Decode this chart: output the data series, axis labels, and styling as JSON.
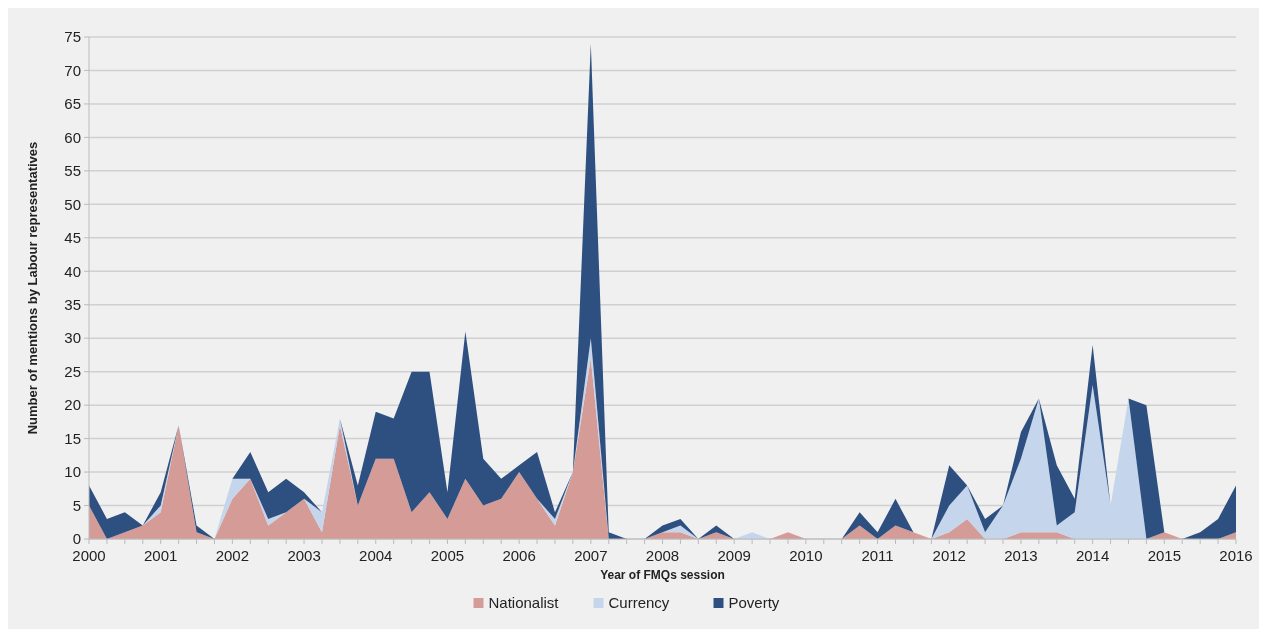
{
  "chart_data": {
    "type": "area",
    "stacked": true,
    "xlabel": "Year of FMQs session",
    "ylabel": "Number of mentions by Labour representatives",
    "x": [
      2000,
      2000.25,
      2000.5,
      2000.75,
      2001,
      2001.25,
      2001.5,
      2001.75,
      2002,
      2002.25,
      2002.5,
      2002.75,
      2003,
      2003.25,
      2003.5,
      2003.75,
      2004,
      2004.25,
      2004.5,
      2004.75,
      2005,
      2005.25,
      2005.5,
      2005.75,
      2006,
      2006.25,
      2006.5,
      2006.75,
      2007,
      2007.25,
      2007.5,
      2007.75,
      2008,
      2008.25,
      2008.5,
      2008.75,
      2009,
      2009.25,
      2009.5,
      2009.75,
      2010,
      2010.25,
      2010.5,
      2010.75,
      2011,
      2011.25,
      2011.5,
      2011.75,
      2012,
      2012.25,
      2012.5,
      2012.75,
      2013,
      2013.25,
      2013.5,
      2013.75,
      2014,
      2014.25,
      2014.5,
      2014.75,
      2015,
      2015.25,
      2015.5,
      2015.75,
      2016
    ],
    "series": [
      {
        "name": "Nationalist",
        "color": "#d59c97",
        "values": [
          5,
          0,
          1,
          2,
          4,
          17,
          1,
          0,
          6,
          9,
          2,
          4,
          6,
          1,
          17,
          5,
          12,
          12,
          4,
          7,
          3,
          9,
          5,
          6,
          10,
          6,
          2,
          10,
          27,
          0,
          0,
          0,
          1,
          1,
          0,
          1,
          0,
          0,
          0,
          1,
          0,
          0,
          0,
          2,
          0,
          2,
          1,
          0,
          1,
          3,
          0,
          0,
          1,
          1,
          1,
          0,
          0,
          0,
          0,
          0,
          1,
          0,
          0,
          0,
          1
        ]
      },
      {
        "name": "Currency",
        "color": "#c5d6ec",
        "values": [
          0,
          0,
          0,
          0,
          1,
          0,
          0,
          0,
          3,
          0,
          1,
          0,
          0,
          3,
          1,
          0,
          0,
          0,
          0,
          0,
          0,
          0,
          0,
          0,
          0,
          0,
          1,
          0,
          3,
          0,
          0,
          0,
          0,
          1,
          0,
          0,
          0,
          1,
          0,
          0,
          0,
          0,
          0,
          0,
          0,
          0,
          0,
          0,
          4,
          5,
          1,
          5,
          11,
          20,
          1,
          4,
          23,
          5,
          21,
          0,
          0,
          0,
          0,
          0,
          0
        ]
      },
      {
        "name": "Poverty",
        "color": "#2e5080",
        "values": [
          3,
          3,
          3,
          0,
          2,
          0,
          1,
          0,
          0,
          4,
          4,
          5,
          1,
          0,
          0,
          3,
          7,
          6,
          21,
          18,
          4,
          22,
          7,
          3,
          1,
          7,
          1,
          0,
          44,
          1,
          0,
          0,
          1,
          1,
          0,
          1,
          0,
          0,
          0,
          0,
          0,
          0,
          0,
          2,
          1,
          4,
          0,
          0,
          6,
          0,
          2,
          0,
          4,
          0,
          9,
          2,
          6,
          0,
          0,
          20,
          0,
          0,
          1,
          3,
          7
        ]
      }
    ],
    "xlim": [
      2000,
      2016
    ],
    "xticks": [
      2000,
      2001,
      2002,
      2003,
      2004,
      2005,
      2006,
      2007,
      2008,
      2009,
      2010,
      2011,
      2012,
      2013,
      2014,
      2015,
      2016
    ],
    "ylim": [
      0,
      75
    ],
    "yticks": [
      0,
      5,
      10,
      15,
      20,
      25,
      30,
      35,
      40,
      45,
      50,
      55,
      60,
      65,
      70,
      75
    ],
    "grid": "y",
    "legend": "bottom"
  }
}
